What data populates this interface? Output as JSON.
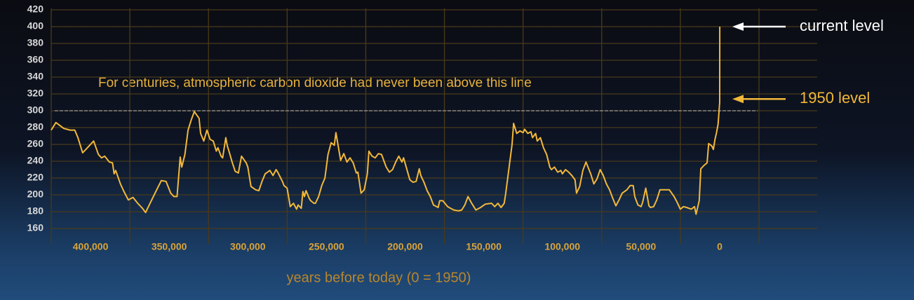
{
  "chart_data": {
    "type": "line",
    "x_label": "years before today (0 = 1950)",
    "note": "For centuries, atmospheric carbon dioxide had never been above this line",
    "color": "#f2b83a",
    "reference_y": 300,
    "annotations": [
      {
        "text": "current level",
        "y": 400,
        "color": "#ffffff"
      },
      {
        "text": "1950 level",
        "y": 314,
        "color": "#f2b83a"
      }
    ],
    "xlim": [
      425000,
      -62000
    ],
    "xticks": [
      {
        "value": 400000,
        "label": "400,000"
      },
      {
        "value": 350000,
        "label": "350,000"
      },
      {
        "value": 300000,
        "label": "300,000"
      },
      {
        "value": 250000,
        "label": "250,000"
      },
      {
        "value": 200000,
        "label": "200,000"
      },
      {
        "value": 150000,
        "label": "150,000"
      },
      {
        "value": 100000,
        "label": "100,000"
      },
      {
        "value": 50000,
        "label": "50,000"
      },
      0
    ],
    "x_gridlines": [
      425000,
      375000,
      325000,
      275000,
      225000,
      175000,
      125000,
      75000,
      25000,
      -25000
    ],
    "ylim": [
      160,
      420
    ],
    "yticks": [
      160,
      180,
      200,
      220,
      240,
      260,
      280,
      300,
      320,
      340,
      360,
      380,
      400,
      420
    ],
    "grid": true,
    "x": [
      425000,
      422000,
      417000,
      413000,
      410000,
      408000,
      405000,
      402000,
      398000,
      395000,
      393000,
      391000,
      388000,
      386000,
      385000,
      384000,
      381000,
      379000,
      376000,
      373000,
      370000,
      367000,
      365000,
      359000,
      355000,
      352000,
      349000,
      347000,
      345000,
      343000,
      342000,
      340000,
      338000,
      336000,
      334000,
      331000,
      330000,
      328000,
      326000,
      324000,
      322000,
      320000,
      319000,
      317000,
      316000,
      314000,
      313000,
      312000,
      310000,
      308000,
      306000,
      304000,
      301000,
      300000,
      298000,
      295000,
      293000,
      291000,
      289000,
      286000,
      284000,
      282000,
      281000,
      278000,
      277000,
      275000,
      273000,
      271000,
      269000,
      268000,
      266000,
      265000,
      264000,
      263000,
      261000,
      260000,
      258000,
      257000,
      255000,
      253000,
      251000,
      249000,
      247000,
      245000,
      244000,
      241000,
      239000,
      237000,
      235000,
      233000,
      231000,
      230000,
      228000,
      226000,
      224000,
      223000,
      221000,
      219000,
      217000,
      215000,
      212000,
      210000,
      208000,
      206000,
      204000,
      202000,
      201000,
      199000,
      197000,
      195000,
      193000,
      191000,
      190000,
      188000,
      186000,
      184000,
      182000,
      179000,
      178000,
      176000,
      173000,
      171000,
      169000,
      166000,
      164000,
      162000,
      160000,
      158000,
      155000,
      152000,
      149000,
      145000,
      143000,
      141000,
      139000,
      137000,
      136000,
      134000,
      132000,
      131000,
      129000,
      127000,
      125000,
      124000,
      122000,
      120000,
      119000,
      117000,
      116000,
      114000,
      112000,
      110000,
      108000,
      107000,
      105000,
      103000,
      101000,
      100000,
      98000,
      96000,
      94000,
      92000,
      91000,
      89000,
      87000,
      85000,
      82000,
      80000,
      78000,
      76000,
      74000,
      72000,
      70000,
      68000,
      66000,
      64000,
      62000,
      59000,
      57000,
      55000,
      54000,
      52000,
      50000,
      49000,
      47000,
      45000,
      44000,
      42000,
      40000,
      38000,
      37000,
      34000,
      32000,
      29000,
      27000,
      25000,
      23000,
      21000,
      18000,
      16000,
      15000,
      13000,
      12000,
      10000,
      8000,
      7000,
      5000,
      4000,
      3000,
      2000,
      1000,
      0,
      -70
    ],
    "values": [
      277,
      286,
      279,
      277,
      277,
      268,
      250,
      256,
      264,
      248,
      244,
      246,
      239,
      238,
      225,
      229,
      213,
      205,
      194,
      197,
      190,
      184,
      179,
      202,
      217,
      216,
      202,
      198,
      198,
      245,
      233,
      248,
      277,
      289,
      299,
      291,
      273,
      264,
      277,
      266,
      264,
      252,
      256,
      246,
      244,
      268,
      258,
      252,
      239,
      228,
      226,
      246,
      238,
      233,
      210,
      206,
      205,
      216,
      225,
      229,
      223,
      230,
      227,
      216,
      211,
      208,
      186,
      190,
      183,
      188,
      184,
      204,
      198,
      205,
      196,
      193,
      190,
      190,
      198,
      211,
      220,
      248,
      262,
      259,
      274,
      241,
      249,
      239,
      244,
      238,
      226,
      227,
      202,
      206,
      225,
      252,
      246,
      244,
      249,
      248,
      233,
      227,
      230,
      239,
      246,
      239,
      244,
      231,
      218,
      215,
      216,
      231,
      223,
      215,
      205,
      198,
      188,
      185,
      193,
      193,
      186,
      184,
      182,
      181,
      182,
      188,
      198,
      191,
      182,
      185,
      189,
      190,
      186,
      190,
      185,
      190,
      202,
      231,
      260,
      285,
      273,
      276,
      274,
      278,
      273,
      275,
      268,
      273,
      264,
      268,
      256,
      248,
      233,
      230,
      233,
      227,
      229,
      225,
      230,
      227,
      223,
      218,
      202,
      210,
      229,
      239,
      225,
      213,
      219,
      230,
      223,
      213,
      206,
      196,
      187,
      194,
      202,
      206,
      211,
      211,
      198,
      188,
      186,
      191,
      208,
      187,
      185,
      186,
      194,
      206,
      206,
      206,
      206,
      198,
      191,
      183,
      186,
      185,
      183,
      186,
      177,
      193,
      231,
      235,
      238,
      261,
      258,
      254,
      266,
      274,
      284,
      310,
      400
    ]
  }
}
